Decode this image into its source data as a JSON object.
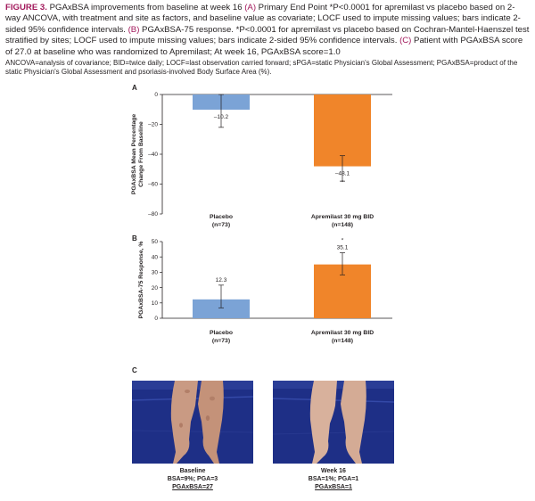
{
  "caption": {
    "figure_label": "FIGURE 3.",
    "lead": " PGAxBSA improvements from baseline at week 16 ",
    "a_ref": "(A)",
    "a_text": " Primary End Point *P<0.0001 for apremilast vs placebo based on 2-way ANCOVA, with treatment and site as factors, and baseline value as covariate; LOCF used to impute missing values; bars indicate 2-sided 95% confidence intervals. ",
    "b_ref": "(B)",
    "b_text": " PGAxBSA-75 response. *P<0.0001 for apremilast vs placebo based on Cochran-Mantel-Haenszel test stratified by sites; LOCF used to impute missing values; bars indicate 2-sided 95% confidence intervals. ",
    "c_ref": "(C)",
    "c_text": " Patient with PGAxBSA score of 27.0 at baseline who was randomized to Apremilast; At week 16, PGAxBSA score=1.0",
    "abbreviations": "ANCOVA=analysis of covariance; BID=twice daily; LOCF=last observation carried forward; sPGA=static Physician's Global Assessment; PGAxBSA=product of the static Physician's Global Assessment and psoriasis-involved Body Surface Area (%)."
  },
  "panels": {
    "a": "A",
    "b": "B",
    "c": "C"
  },
  "colors": {
    "placebo": "#7ba3d6",
    "apremilast": "#f0852a",
    "axis": "#231f20",
    "photo_bg": "#1e2f86"
  },
  "chart_data": [
    {
      "type": "bar",
      "panel": "A",
      "categories": [
        "Placebo",
        "Apremilast 30 mg BID"
      ],
      "category_sublabels": [
        "(n=73)",
        "(n=148)"
      ],
      "values": [
        -10.2,
        -48.1
      ],
      "value_labels": [
        "–10.2",
        "–48.1"
      ],
      "ci_low": [
        -22,
        -58
      ],
      "ci_high": [
        0,
        -41
      ],
      "significance_markers": [
        "",
        "*"
      ],
      "ylabel": "PGAxBSA Mean Percentage Change From Baseline",
      "ylim": [
        -80,
        0
      ],
      "yticks": [
        0,
        -20,
        -40,
        -60,
        -80
      ],
      "ytick_labels": [
        "0",
        "–20",
        "–40",
        "–60",
        "–80"
      ],
      "grid": false
    },
    {
      "type": "bar",
      "panel": "B",
      "categories": [
        "Placebo",
        "Apremilast 30 mg BID"
      ],
      "category_sublabels": [
        "(n=73)",
        "(n=148)"
      ],
      "values": [
        12.3,
        35.1
      ],
      "value_labels": [
        "12.3",
        "35.1"
      ],
      "ci_low": [
        6.8,
        28.3
      ],
      "ci_high": [
        21.6,
        42.7
      ],
      "significance_markers": [
        "",
        "*"
      ],
      "ylabel": "PGAxBSA-75 Response, %",
      "ylim": [
        0,
        50
      ],
      "yticks": [
        0,
        10,
        20,
        30,
        40,
        50
      ],
      "ytick_labels": [
        "0",
        "10",
        "20",
        "30",
        "40",
        "50"
      ],
      "grid": false
    }
  ],
  "photos": [
    {
      "icon": "legs-photo-baseline",
      "lines": [
        "Baseline",
        "BSA=9%; PGA=3",
        "PGAxBSA=27"
      ]
    },
    {
      "icon": "legs-photo-week16",
      "lines": [
        "Week 16",
        "BSA=1%; PGA=1",
        "PGAxBSA=1"
      ]
    }
  ]
}
